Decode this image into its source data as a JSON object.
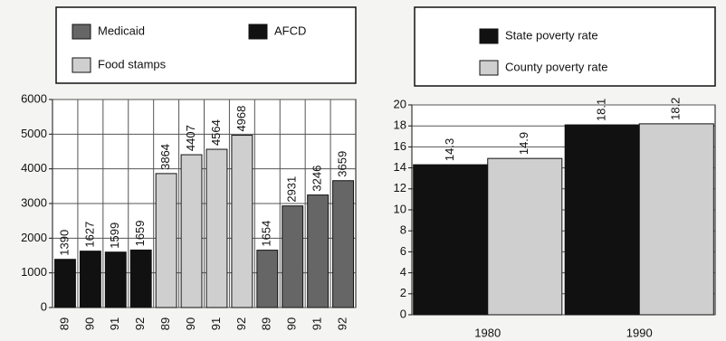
{
  "chart_data": [
    {
      "type": "bar",
      "categories": [
        "89",
        "90",
        "91",
        "92",
        "89",
        "90",
        "91",
        "92",
        "89",
        "90",
        "91",
        "92"
      ],
      "series": [
        {
          "name": "Medicaid",
          "color": "#666666",
          "values": [
            null,
            null,
            null,
            null,
            null,
            null,
            null,
            null,
            1654,
            2931,
            3246,
            3659
          ]
        },
        {
          "name": "AFCD",
          "color": "#111111",
          "values": [
            1390,
            1627,
            1599,
            1659,
            null,
            null,
            null,
            null,
            null,
            null,
            null,
            null
          ]
        },
        {
          "name": "Food stamps",
          "color": "#cfcfcf",
          "values": [
            null,
            null,
            null,
            null,
            3864,
            4407,
            4564,
            4968,
            null,
            null,
            null,
            null
          ]
        }
      ],
      "ylim": [
        0,
        6000
      ],
      "yticks": [
        0,
        1000,
        2000,
        3000,
        4000,
        5000,
        6000
      ],
      "grid": true
    },
    {
      "type": "bar",
      "categories": [
        "1980",
        "1990"
      ],
      "series": [
        {
          "name": "State poverty rate",
          "color": "#111111",
          "values": [
            14.3,
            18.1
          ]
        },
        {
          "name": "County poverty rate",
          "color": "#cfcfcf",
          "values": [
            14.9,
            18.2
          ]
        }
      ],
      "ylim": [
        0,
        20
      ],
      "yticks": [
        0,
        2,
        4,
        6,
        8,
        10,
        12,
        14,
        16,
        18,
        20
      ],
      "grid": true
    }
  ]
}
